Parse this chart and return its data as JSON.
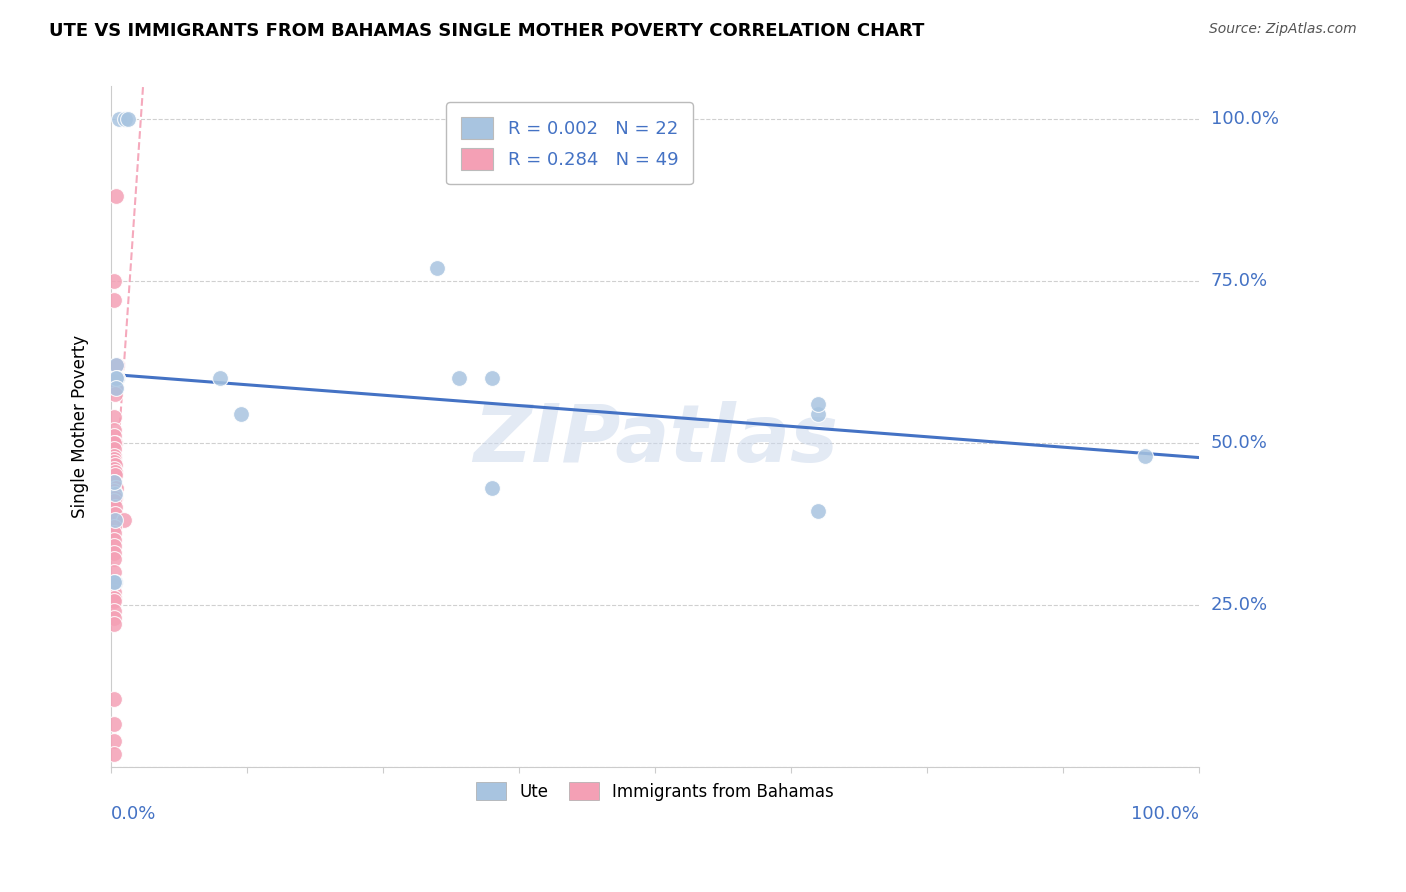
{
  "title": "UTE VS IMMIGRANTS FROM BAHAMAS SINGLE MOTHER POVERTY CORRELATION CHART",
  "source": "Source: ZipAtlas.com",
  "ylabel": "Single Mother Poverty",
  "xlim": [
    0.0,
    1.0
  ],
  "ylim": [
    0.0,
    1.05
  ],
  "yticks": [
    0.0,
    0.25,
    0.5,
    0.75,
    1.0
  ],
  "ytick_labels": [
    "",
    "25.0%",
    "50.0%",
    "75.0%",
    "100.0%"
  ],
  "legend_r_ute": "R = 0.002",
  "legend_n_ute": "N = 22",
  "legend_r_bahamas": "R = 0.284",
  "legend_n_bahamas": "N = 49",
  "ute_color": "#a8c4e0",
  "bahamas_color": "#f4a0b5",
  "trend_ute_color": "#4472c4",
  "trend_bahamas_color": "#f4a0b5",
  "watermark": "ZIPatlas",
  "background_color": "#ffffff",
  "legend_text_color": "#4472c4",
  "axis_label_color": "#4472c4",
  "ute_data_x": [
    0.008,
    0.013,
    0.016,
    0.005,
    0.006,
    0.3,
    0.005,
    0.12,
    0.005,
    0.32,
    0.65,
    0.95,
    0.65,
    0.65,
    0.35,
    0.004,
    0.003,
    0.004,
    0.35,
    0.004,
    0.003,
    0.1
  ],
  "ute_data_y": [
    1.0,
    1.0,
    1.0,
    0.62,
    0.6,
    0.77,
    0.6,
    0.545,
    0.585,
    0.6,
    0.545,
    0.48,
    0.56,
    0.395,
    0.43,
    0.42,
    0.44,
    0.38,
    0.6,
    0.285,
    0.285,
    0.6
  ],
  "bahamas_data_x": [
    0.005,
    0.003,
    0.003,
    0.006,
    0.006,
    0.003,
    0.004,
    0.004,
    0.003,
    0.003,
    0.003,
    0.004,
    0.003,
    0.003,
    0.003,
    0.003,
    0.003,
    0.004,
    0.003,
    0.004,
    0.004,
    0.003,
    0.004,
    0.005,
    0.003,
    0.003,
    0.004,
    0.003,
    0.004,
    0.004,
    0.012,
    0.003,
    0.003,
    0.003,
    0.003,
    0.003,
    0.003,
    0.003,
    0.003,
    0.003,
    0.003,
    0.003,
    0.003,
    0.003,
    0.003,
    0.003,
    0.003,
    0.003,
    0.003
  ],
  "bahamas_data_y": [
    0.88,
    0.75,
    0.72,
    0.62,
    0.6,
    0.595,
    0.585,
    0.575,
    0.54,
    0.52,
    0.51,
    0.5,
    0.5,
    0.49,
    0.48,
    0.475,
    0.47,
    0.465,
    0.46,
    0.455,
    0.45,
    0.44,
    0.43,
    0.43,
    0.425,
    0.42,
    0.415,
    0.41,
    0.4,
    0.39,
    0.38,
    0.37,
    0.36,
    0.35,
    0.34,
    0.33,
    0.32,
    0.3,
    0.28,
    0.27,
    0.26,
    0.255,
    0.24,
    0.23,
    0.22,
    0.105,
    0.065,
    0.04,
    0.02
  ],
  "grid_color": "#d0d0d0",
  "spine_color": "#cccccc"
}
